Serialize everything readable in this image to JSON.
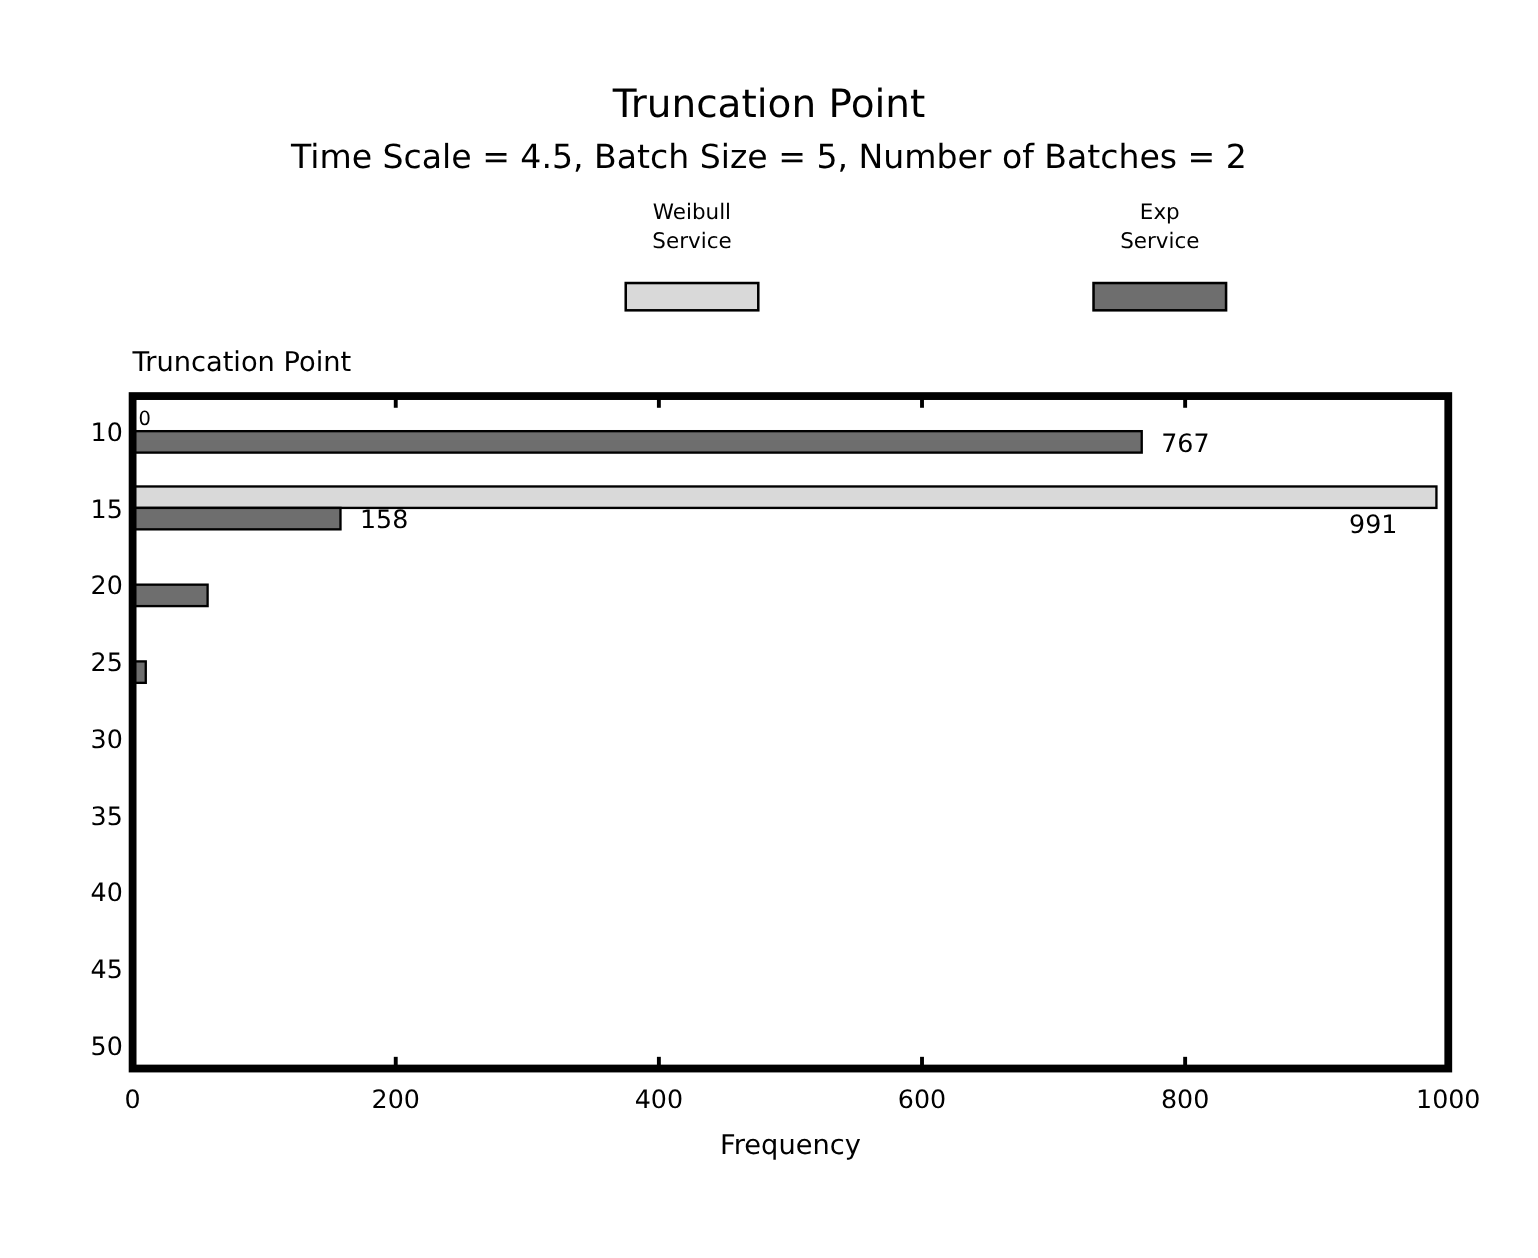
{
  "chart_data": {
    "type": "bar",
    "orientation": "horizontal",
    "title": "Truncation Point",
    "subtitle": "Time Scale = 4.5, Batch Size = 5, Number of Batches = 2",
    "ylabel": "Truncation Point",
    "xlabel": "Frequency",
    "categories": [
      "10",
      "15",
      "20",
      "25",
      "30",
      "35",
      "40",
      "45",
      "50"
    ],
    "series": [
      {
        "name": "Weibull Service",
        "color": "#d9d9d9",
        "values": [
          0,
          991,
          0,
          0,
          0,
          0,
          0,
          0,
          0
        ],
        "value_labels": [
          "0",
          "991",
          null,
          null,
          null,
          null,
          null,
          null,
          null
        ]
      },
      {
        "name": "Exp Service",
        "color": "#6e6e6e",
        "values": [
          767,
          158,
          57,
          10,
          0,
          0,
          0,
          0,
          0
        ],
        "value_labels": [
          "767",
          "158",
          null,
          null,
          null,
          null,
          null,
          null,
          null
        ]
      }
    ],
    "xlim": [
      0,
      1000
    ],
    "xticks": [
      0,
      200,
      400,
      600,
      800,
      1000
    ],
    "legend": "top",
    "grid": false
  }
}
